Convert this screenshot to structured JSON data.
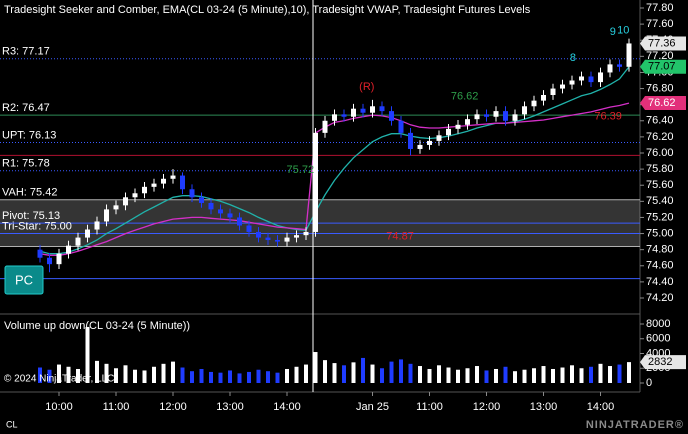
{
  "chart_data": [
    {
      "type": "candlestick",
      "title": "Tradesight Seeker and Comber, EMA(CL 03-24 (5 Minute),10), Tradesight VWAP, Tradesight Futures Levels",
      "xlim": [
        0,
        62
      ],
      "xticks": [
        {
          "value": 2,
          "label": "10:00"
        },
        {
          "value": 8,
          "label": "11:00"
        },
        {
          "value": 14,
          "label": "12:00"
        },
        {
          "value": 20,
          "label": "13:00"
        },
        {
          "value": 26,
          "label": "14:00"
        },
        {
          "value": 35,
          "label": "Jan 25"
        },
        {
          "value": 41,
          "label": "11:00"
        },
        {
          "value": 47,
          "label": "12:00"
        },
        {
          "value": 53,
          "label": "13:00"
        },
        {
          "value": 59,
          "label": "14:00"
        }
      ],
      "ylim": [
        74.2,
        77.8
      ],
      "yticks": [
        {
          "value": 77.8,
          "label": "77.80"
        },
        {
          "value": 77.6,
          "label": "77.60"
        },
        {
          "value": 77.4,
          "label": "77.40"
        },
        {
          "value": 77.2,
          "label": "77.20"
        },
        {
          "value": 77.0,
          "label": "77.00"
        },
        {
          "value": 76.8,
          "label": "76.80"
        },
        {
          "value": 76.6,
          "label": "76.60"
        },
        {
          "value": 76.4,
          "label": "76.40"
        },
        {
          "value": 76.2,
          "label": "76.20"
        },
        {
          "value": 76.0,
          "label": "76.00"
        },
        {
          "value": 75.8,
          "label": "75.80"
        },
        {
          "value": 75.6,
          "label": "75.60"
        },
        {
          "value": 75.4,
          "label": "75.40"
        },
        {
          "value": 75.2,
          "label": "75.20"
        },
        {
          "value": 75.0,
          "label": "75.00"
        },
        {
          "value": 74.8,
          "label": "74.80"
        },
        {
          "value": 74.6,
          "label": "74.60"
        },
        {
          "value": 74.4,
          "label": "74.40"
        },
        {
          "value": 74.2,
          "label": "74.20"
        }
      ],
      "up_color": "#ffffff",
      "down_color": "#1f3cff",
      "last_box_color": "#e6e6e6",
      "open": [
        74.8,
        74.7,
        74.62,
        74.75,
        74.85,
        74.95,
        75.05,
        75.15,
        75.3,
        75.35,
        75.45,
        75.5,
        75.58,
        75.62,
        75.68,
        75.72,
        75.55,
        75.45,
        75.38,
        75.3,
        75.25,
        75.2,
        75.1,
        75.02,
        74.95,
        74.92,
        74.9,
        74.95,
        74.98,
        75.02,
        76.25,
        76.4,
        76.48,
        76.45,
        76.55,
        76.5,
        76.58,
        76.52,
        76.4,
        76.25,
        76.05,
        76.1,
        76.15,
        76.22,
        76.3,
        76.35,
        76.42,
        76.48,
        76.45,
        76.52,
        76.4,
        76.48,
        76.58,
        76.65,
        76.72,
        76.8,
        76.85,
        76.9,
        76.95,
        76.88,
        77.0,
        77.1,
        77.07
      ],
      "high": [
        74.86,
        74.76,
        74.81,
        74.91,
        75.01,
        75.11,
        75.21,
        75.36,
        75.41,
        75.51,
        75.56,
        75.64,
        75.68,
        75.74,
        75.8,
        75.76,
        75.61,
        75.51,
        75.44,
        75.36,
        75.31,
        75.26,
        75.16,
        75.08,
        75.01,
        74.98,
        75.01,
        75.04,
        75.08,
        76.31,
        76.46,
        76.54,
        76.54,
        76.61,
        76.61,
        76.66,
        76.64,
        76.58,
        76.46,
        76.31,
        76.16,
        76.21,
        76.28,
        76.36,
        76.41,
        76.48,
        76.54,
        76.54,
        76.58,
        76.58,
        76.54,
        76.64,
        76.71,
        76.78,
        76.86,
        76.91,
        76.96,
        77.01,
        77.01,
        77.06,
        77.16,
        77.16,
        77.42
      ],
      "low": [
        74.64,
        74.52,
        74.56,
        74.69,
        74.79,
        74.89,
        74.99,
        75.09,
        75.24,
        75.29,
        75.39,
        75.44,
        75.52,
        75.56,
        75.62,
        75.49,
        75.39,
        75.32,
        75.24,
        75.19,
        75.14,
        75.04,
        74.96,
        74.89,
        74.86,
        74.84,
        74.84,
        74.89,
        74.92,
        74.96,
        76.19,
        76.34,
        76.39,
        76.39,
        76.44,
        76.44,
        76.46,
        76.34,
        76.19,
        75.97,
        75.99,
        76.04,
        76.09,
        76.16,
        76.24,
        76.29,
        76.36,
        76.39,
        76.39,
        76.34,
        76.34,
        76.42,
        76.52,
        76.59,
        76.66,
        76.74,
        76.79,
        76.84,
        76.82,
        76.82,
        76.94,
        77.01,
        77.01
      ],
      "close": [
        74.7,
        74.62,
        74.75,
        74.85,
        74.95,
        75.05,
        75.15,
        75.3,
        75.35,
        75.45,
        75.5,
        75.58,
        75.62,
        75.68,
        75.72,
        75.55,
        75.45,
        75.38,
        75.3,
        75.25,
        75.2,
        75.1,
        75.02,
        74.95,
        74.92,
        74.9,
        74.95,
        74.98,
        75.02,
        76.25,
        76.4,
        76.48,
        76.45,
        76.55,
        76.5,
        76.58,
        76.52,
        76.4,
        76.25,
        76.05,
        76.1,
        76.15,
        76.22,
        76.3,
        76.35,
        76.42,
        76.48,
        76.45,
        76.52,
        76.4,
        76.48,
        76.58,
        76.65,
        76.72,
        76.8,
        76.85,
        76.9,
        76.95,
        76.88,
        77.0,
        77.1,
        77.07,
        77.36
      ],
      "lines": [
        {
          "color": "#20b2aa",
          "box_color": "#22c46a",
          "values": [
            74.78,
            74.75,
            74.75,
            74.77,
            74.81,
            74.86,
            74.92,
            75.0,
            75.06,
            75.13,
            75.2,
            75.27,
            75.33,
            75.39,
            75.45,
            75.47,
            75.47,
            75.46,
            75.43,
            75.4,
            75.36,
            75.31,
            75.26,
            75.2,
            75.15,
            75.1,
            75.07,
            75.05,
            75.04,
            75.27,
            75.48,
            75.66,
            75.81,
            75.94,
            76.04,
            76.14,
            76.2,
            76.24,
            76.24,
            76.21,
            76.19,
            76.18,
            76.19,
            76.21,
            76.24,
            76.27,
            76.31,
            76.34,
            76.37,
            76.37,
            76.39,
            76.42,
            76.46,
            76.51,
            76.56,
            76.61,
            76.66,
            76.71,
            76.74,
            76.79,
            76.85,
            76.92,
            77.07
          ]
        },
        {
          "color": "#d42fc8",
          "box_color": "#e2307a",
          "values": [
            74.75,
            74.73,
            74.73,
            74.75,
            74.78,
            74.82,
            74.86,
            74.9,
            74.95,
            75.0,
            75.04,
            75.08,
            75.12,
            75.15,
            75.18,
            75.19,
            75.2,
            75.2,
            75.19,
            75.18,
            75.17,
            75.16,
            75.14,
            75.12,
            75.1,
            75.08,
            75.07,
            75.06,
            75.05,
            76.25,
            76.32,
            76.38,
            76.4,
            76.43,
            76.45,
            76.47,
            76.46,
            76.44,
            76.4,
            76.35,
            76.32,
            76.31,
            76.31,
            76.32,
            76.33,
            76.34,
            76.35,
            76.36,
            76.37,
            76.37,
            76.38,
            76.39,
            76.4,
            76.41,
            76.43,
            76.45,
            76.47,
            76.49,
            76.51,
            76.54,
            76.57,
            76.59,
            76.62
          ]
        }
      ],
      "levels": [
        {
          "label": "R3: 77.17",
          "value": 77.17,
          "color": "#3a5bff",
          "dashed": true
        },
        {
          "label": "R2: 76.47",
          "value": 76.47,
          "color": "#2e8b57",
          "dashed": false
        },
        {
          "label": "UPT: 76.13",
          "value": 76.13,
          "color": "#3a5bff",
          "dashed": true
        },
        {
          "label": "R1: 75.78",
          "value": 75.78,
          "color": "#3a5bff",
          "dashed": true
        },
        {
          "label": "VAH: 75.42",
          "value": 75.42,
          "color": "#b0b0b0",
          "dashed": false,
          "fill_to": 74.84
        },
        {
          "label": "Pivot: 75.13",
          "value": 75.13,
          "color": "#3a5bff",
          "dashed": false
        },
        {
          "label": "Tri-Star: 75.00",
          "value": 75.0,
          "color": "#3a5bff",
          "dashed": false
        },
        {
          "value": 74.84,
          "color": "#b0b0b0",
          "dashed": false
        },
        {
          "value": 75.97,
          "color": "#b01030",
          "dashed": false
        },
        {
          "value": 74.44,
          "color": "#3a5bff",
          "dashed": false
        }
      ],
      "annotations": [
        {
          "text": "(R)",
          "x": 34.4,
          "y": 76.82,
          "color": "#e0202a"
        },
        {
          "text": "76.62",
          "x": 44.7,
          "y": 76.7,
          "color": "#2e9e4a"
        },
        {
          "text": "76.39",
          "x": 59.8,
          "y": 76.45,
          "color": "#e0202a"
        },
        {
          "text": "75.72",
          "x": 27.4,
          "y": 75.79,
          "color": "#2e9e4a"
        },
        {
          "text": "74.87",
          "x": 37.9,
          "y": 74.96,
          "color": "#e0202a"
        },
        {
          "text": "8",
          "x": 56.1,
          "y": 77.18,
          "color": "#27d0e0"
        },
        {
          "text": "9",
          "x": 60.3,
          "y": 77.5,
          "color": "#27d0e0"
        },
        {
          "text": "10",
          "x": 61.4,
          "y": 77.52,
          "color": "#27d0e0"
        }
      ]
    },
    {
      "type": "bar",
      "title": "Volume up down(CL 03-24 (5 Minute))",
      "footer": "© 2024 NinjaTrader, LLC",
      "ylim": [
        0,
        8000
      ],
      "yticks": [
        0,
        2000,
        4000,
        6000,
        8000
      ],
      "up_color": "#ffffff",
      "down_color": "#1f3cff",
      "box_color": "#e6e6e6",
      "values": [
        2100,
        1800,
        2500,
        2200,
        1900,
        7600,
        3000,
        2600,
        2000,
        2400,
        1800,
        1700,
        2200,
        2600,
        2900,
        2100,
        1600,
        1900,
        1500,
        1400,
        1700,
        1300,
        1500,
        1800,
        1600,
        1400,
        1900,
        2200,
        2500,
        4200,
        3100,
        2700,
        2400,
        2800,
        3400,
        2500,
        2000,
        2900,
        3200,
        2600,
        2300,
        1900,
        2400,
        2100,
        1800,
        2000,
        2300,
        1700,
        1900,
        2200,
        1600,
        1800,
        2000,
        2300,
        1900,
        2100,
        2400,
        2000,
        2200,
        2600,
        2300,
        2500,
        2832
      ]
    }
  ],
  "instrument": "CL",
  "brand": "NINJATRADER®",
  "button": "PC"
}
